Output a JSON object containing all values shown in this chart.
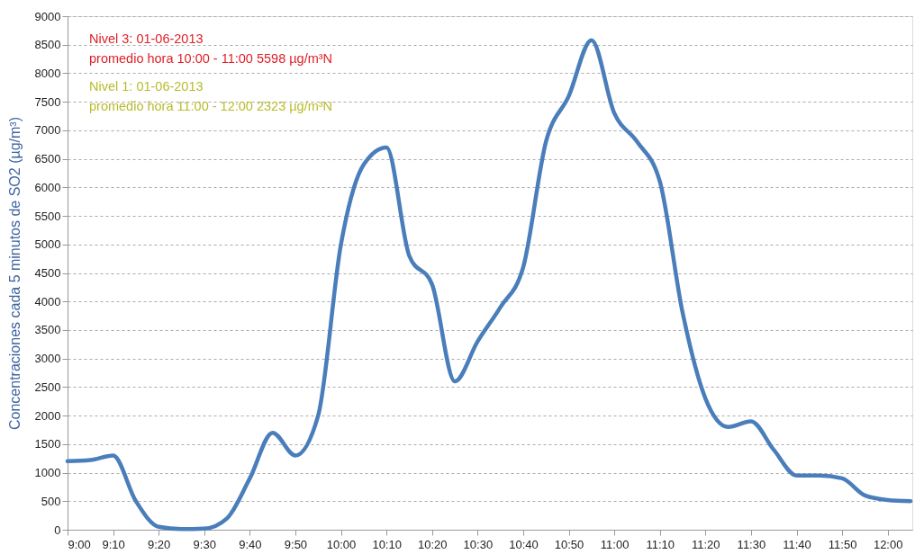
{
  "chart_data": {
    "type": "line",
    "ylabel": "Concentraciones  cada  5 minutos  de SO2 (µg/m³)",
    "annotations": [
      "Nivel 3: 01-06-2013",
      "promedio hora 10:00 - 11:00   5598 µg/m³N",
      "Nivel 1: 01-06-2013",
      "promedio hora 11:00 - 12:00   2323 µg/m³N"
    ],
    "x": [
      9.0,
      9.0833,
      9.1667,
      9.25,
      9.3333,
      9.4167,
      9.5,
      9.5833,
      9.6667,
      9.75,
      9.8333,
      9.9167,
      10.0,
      10.0833,
      10.1667,
      10.25,
      10.3333,
      10.4167,
      10.5,
      10.5833,
      10.6667,
      10.75,
      10.8333,
      10.9167,
      11.0,
      11.0833,
      11.1667,
      11.25,
      11.3333,
      11.4167,
      11.5,
      11.5833,
      11.6667,
      11.75,
      11.8333,
      11.9167,
      12.0,
      12.0833
    ],
    "series": [
      {
        "color": "#4a7ebb",
        "values": [
          1200,
          1220,
          1300,
          500,
          50,
          10,
          20,
          200,
          900,
          1700,
          1300,
          2000,
          5000,
          6400,
          6700,
          4800,
          4300,
          2600,
          3300,
          3900,
          4600,
          6800,
          7600,
          8580,
          7300,
          6800,
          6100,
          3800,
          2300,
          1800,
          1900,
          1400,
          950,
          950,
          900,
          600,
          520,
          500
        ]
      }
    ],
    "xlim": [
      9.0,
      12.09
    ],
    "xticks": [
      {
        "value": 9.0,
        "label": "9:00"
      },
      {
        "value": 9.1667,
        "label": "9:10"
      },
      {
        "value": 9.3333,
        "label": "9:20"
      },
      {
        "value": 9.5,
        "label": "9:30"
      },
      {
        "value": 9.6667,
        "label": "9:40"
      },
      {
        "value": 9.8333,
        "label": "9:50"
      },
      {
        "value": 10.0,
        "label": "10:00"
      },
      {
        "value": 10.1667,
        "label": "10:10"
      },
      {
        "value": 10.3333,
        "label": "10:20"
      },
      {
        "value": 10.5,
        "label": "10:30"
      },
      {
        "value": 10.6667,
        "label": "10:40"
      },
      {
        "value": 10.8333,
        "label": "10:50"
      },
      {
        "value": 11.0,
        "label": "11:00"
      },
      {
        "value": 11.1667,
        "label": "11:10"
      },
      {
        "value": 11.3333,
        "label": "11:20"
      },
      {
        "value": 11.5,
        "label": "11:30"
      },
      {
        "value": 11.6667,
        "label": "11:40"
      },
      {
        "value": 11.8333,
        "label": "11:50"
      },
      {
        "value": 12.0,
        "label": "12:00"
      }
    ],
    "ylim": [
      0,
      9000
    ],
    "yticks": [
      0,
      500,
      1000,
      1500,
      2000,
      2500,
      3000,
      3500,
      4000,
      4500,
      5000,
      5500,
      6000,
      6500,
      7000,
      7500,
      8000,
      8500,
      9000
    ],
    "grid": "y",
    "marker": "none",
    "line_style": "solid",
    "legend": false
  }
}
